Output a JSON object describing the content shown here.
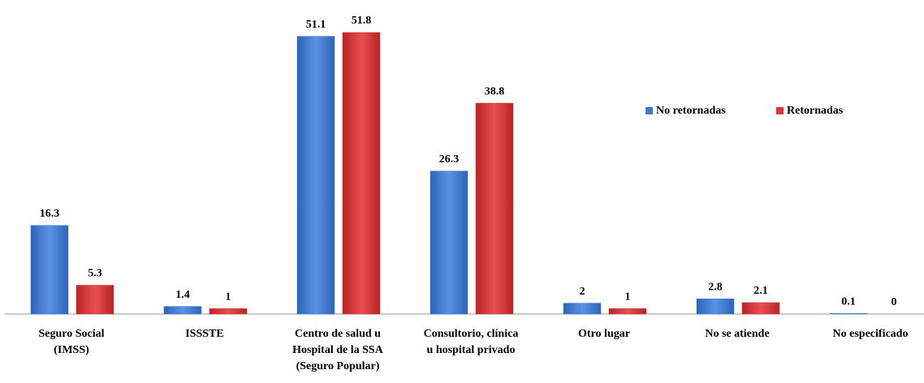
{
  "chart_data": {
    "type": "bar",
    "categories": [
      [
        "Seguro Social",
        "(IMSS)"
      ],
      [
        "ISSSTE"
      ],
      [
        "Centro de salud u",
        "Hospital de la SSA",
        "(Seguro Popular)"
      ],
      [
        "Consultorio, clínica",
        "u hospital privado"
      ],
      [
        "Otro lugar"
      ],
      [
        "No se atiende"
      ],
      [
        "No especificado"
      ]
    ],
    "series": [
      {
        "name": "No retornadas",
        "color": "#3f78d0",
        "values": [
          16.3,
          1.4,
          51.1,
          26.3,
          2,
          2.8,
          0.1
        ]
      },
      {
        "name": "Retornadas",
        "color": "#d63636",
        "values": [
          5.3,
          1,
          51.8,
          38.8,
          1,
          2.1,
          0
        ]
      }
    ],
    "legend": "upper right"
  }
}
